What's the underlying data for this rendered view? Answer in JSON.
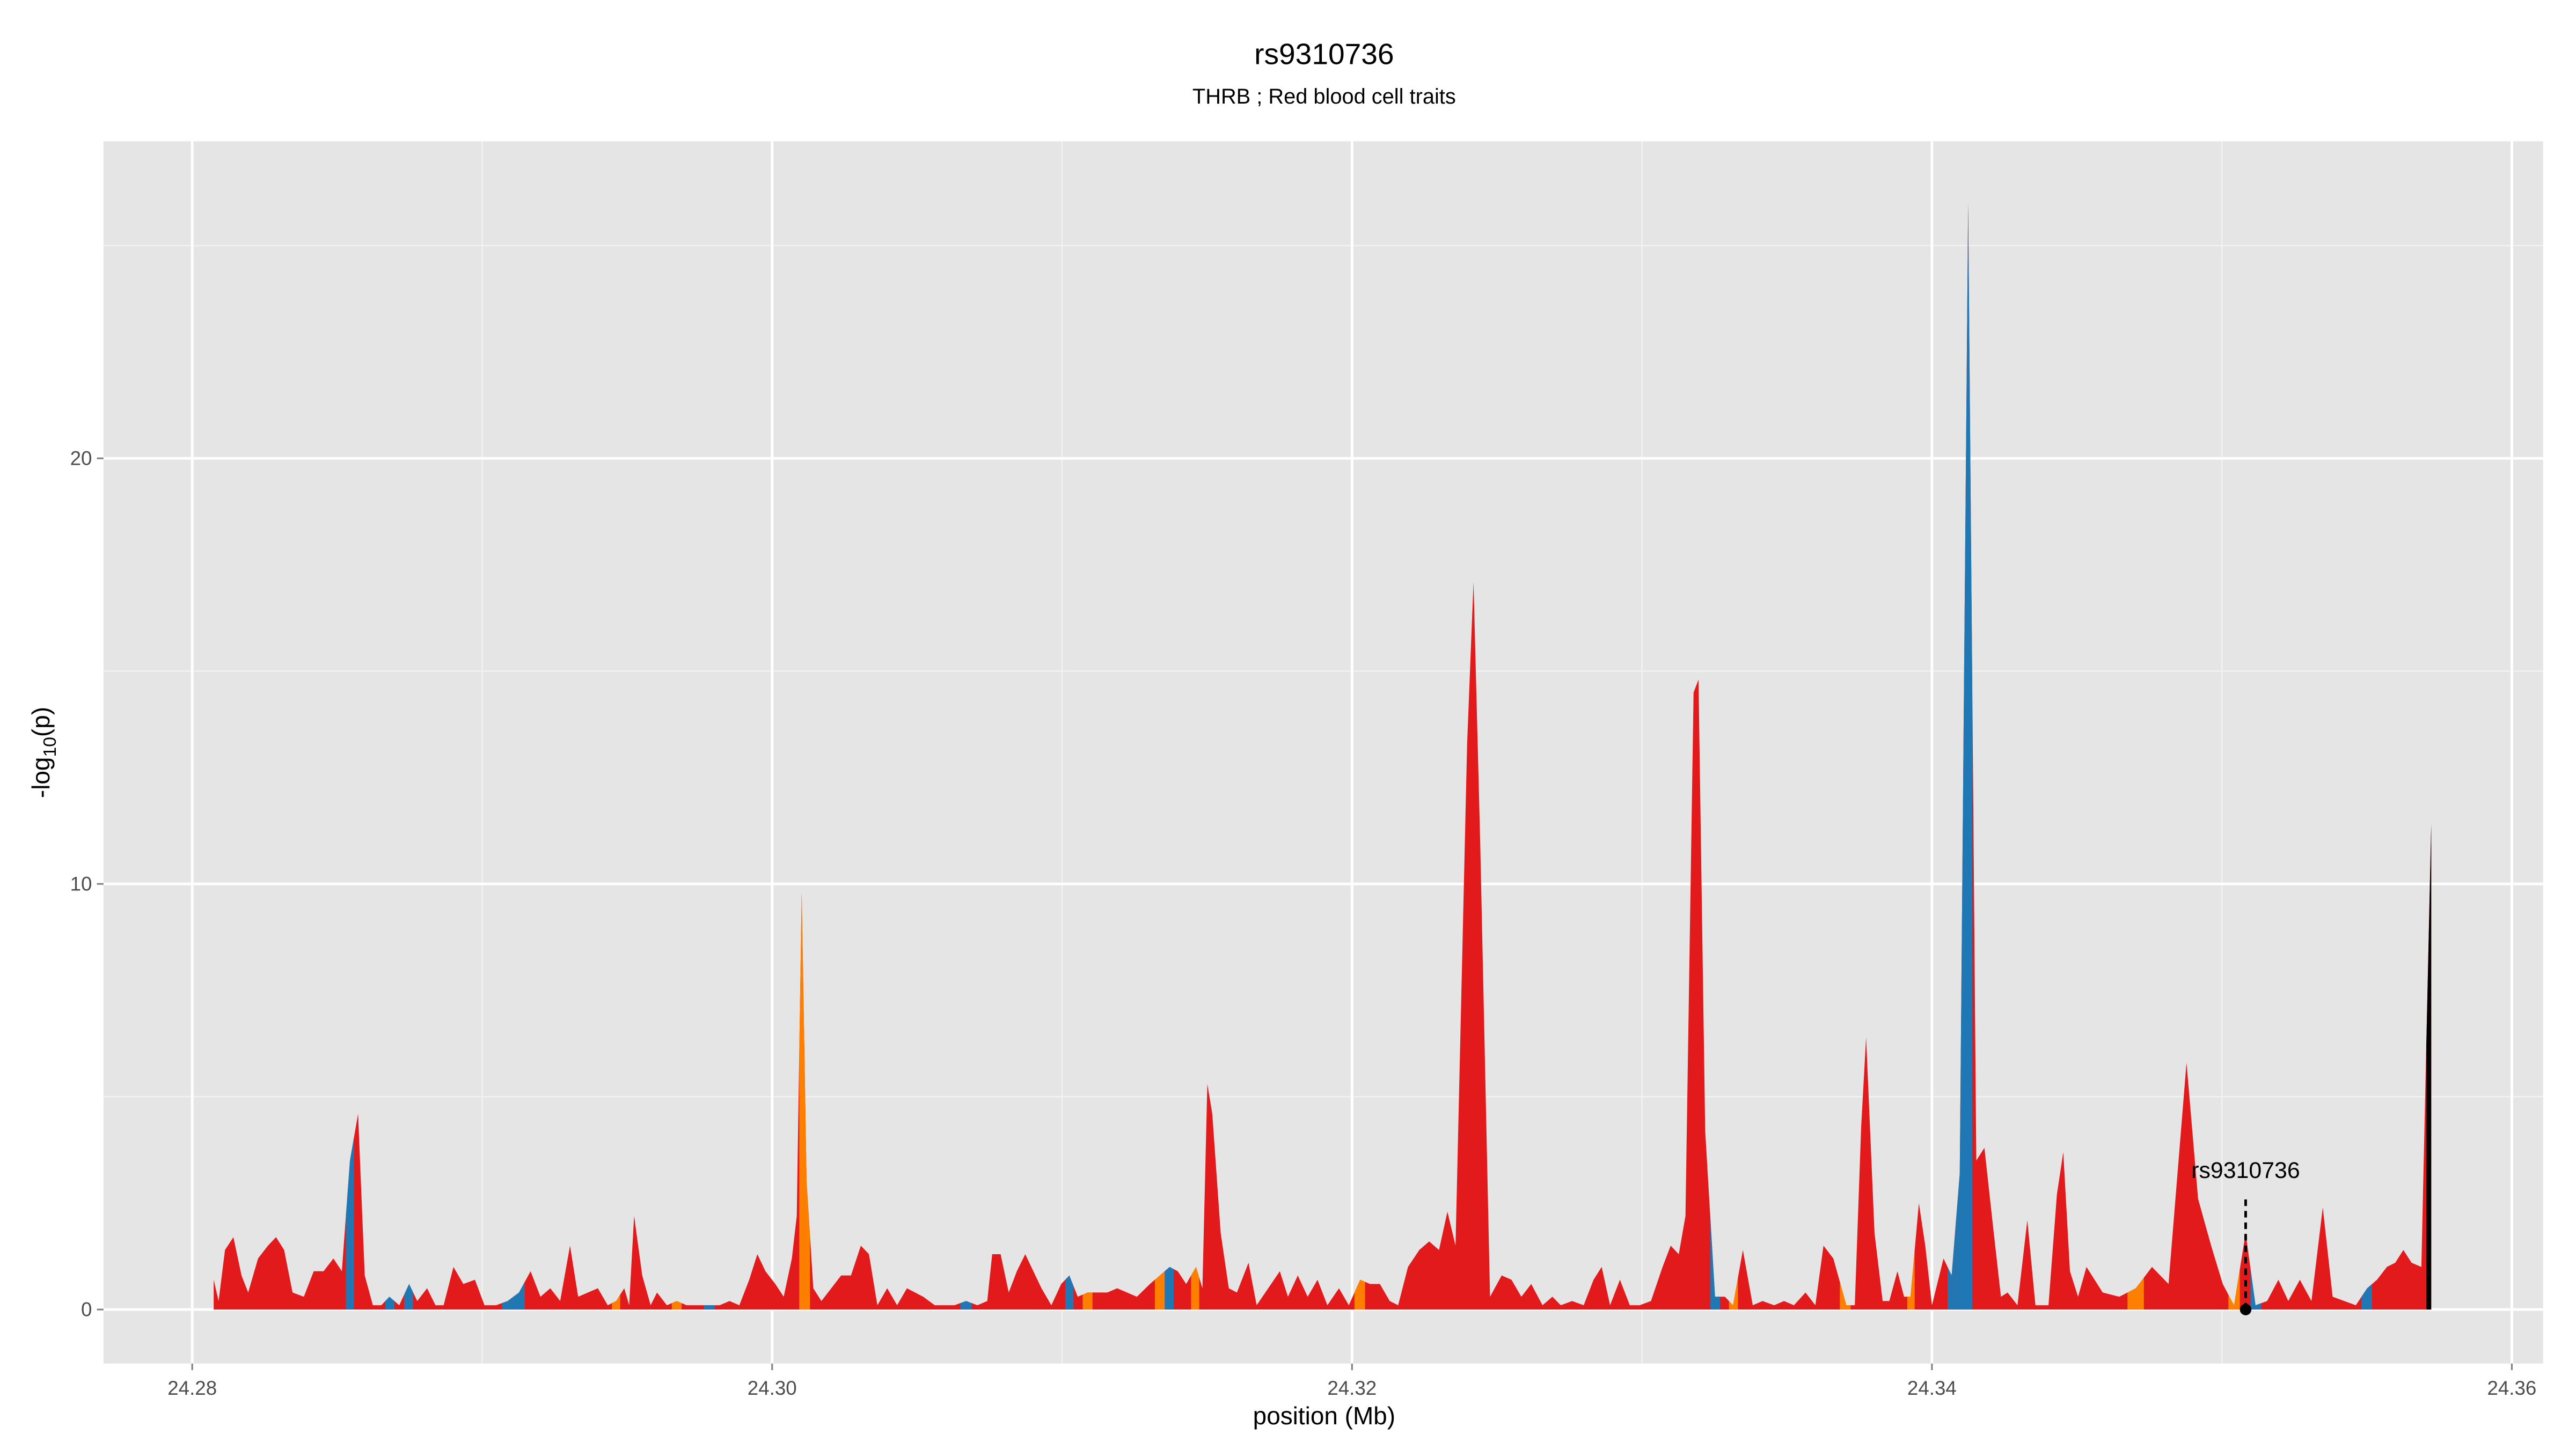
{
  "chart_data": {
    "type": "area",
    "title": "rs9310736",
    "subtitle": "THRB ; Red blood cell traits",
    "x_label": "position (Mb)",
    "y_label": {
      "main": "-log",
      "sub": "10",
      "suffix": "(p)"
    },
    "xlim": [
      24.27694,
      24.36108
    ],
    "ylim": [
      -1.27,
      27.45
    ],
    "xticks": [
      24.28,
      {
        "value": 24.3,
        "label": "24.30"
      },
      24.32,
      24.34,
      24.36
    ],
    "yticks": [
      0,
      10,
      20
    ],
    "x_minor_grid": [
      24.29,
      24.31,
      24.33,
      24.35
    ],
    "y_minor_grid": [
      5,
      15,
      25
    ],
    "grid": true,
    "background": "#e5e5e5",
    "annotation": {
      "label": "rs9310736",
      "x": 24.35082,
      "y": 0
    },
    "x": [
      24.28074,
      24.28091,
      24.28113,
      24.28142,
      24.2817,
      24.28193,
      24.28227,
      24.28261,
      24.28289,
      24.28317,
      24.28346,
      24.28385,
      24.28419,
      24.28453,
      24.28487,
      24.28516,
      24.28544,
      24.28572,
      24.28595,
      24.28623,
      24.28652,
      24.2868,
      24.28714,
      24.28748,
      24.28776,
      24.2881,
      24.28839,
      24.28867,
      24.28901,
      24.28935,
      24.28975,
      24.29008,
      24.29048,
      24.29088,
      24.29127,
      24.29167,
      24.29201,
      24.29235,
      24.29269,
      24.29303,
      24.29331,
      24.29365,
      24.29399,
      24.29433,
      24.29462,
      24.2949,
      24.29507,
      24.29524,
      24.29552,
      24.29581,
      24.29603,
      24.29637,
      24.29671,
      24.29705,
      24.29745,
      24.29785,
      24.29819,
      24.29853,
      24.29887,
      24.29921,
      24.29949,
      24.29977,
      24.30011,
      24.3004,
      24.30068,
      24.30085,
      24.30102,
      24.30119,
      24.30142,
      24.3017,
      24.30204,
      24.30238,
      24.30272,
      24.30306,
      24.30334,
      24.30363,
      24.30397,
      24.30431,
      24.30465,
      24.30493,
      24.30521,
      24.30561,
      24.30595,
      24.30629,
      24.30669,
      24.30708,
      24.30742,
      24.30759,
      24.30788,
      24.30816,
      24.30844,
      24.30873,
      24.30901,
      24.30929,
      24.30963,
      24.30997,
      24.31025,
      24.31054,
      24.31088,
      24.31122,
      24.31156,
      24.3119,
      24.31224,
      24.31258,
      24.31303,
      24.31337,
      24.31371,
      24.31399,
      24.31428,
      24.31462,
      24.31484,
      24.31501,
      24.31518,
      24.31547,
      24.31575,
      24.31603,
      24.31643,
      24.31671,
      24.31711,
      24.31751,
      24.31779,
      24.31813,
      24.31847,
      24.31881,
      24.31915,
      24.31955,
      24.31989,
      24.32028,
      24.32062,
      24.32096,
      24.3213,
      24.32159,
      24.32193,
      24.32232,
      24.32266,
      24.323,
      24.32329,
      24.32357,
      24.32397,
      24.32419,
      24.32442,
      24.32476,
      24.32516,
      24.3255,
      24.32584,
      24.32618,
      24.32657,
      24.32691,
      24.3272,
      24.32759,
      24.32799,
      24.32833,
      24.32861,
      24.3289,
      24.32924,
      24.32958,
      24.32992,
      24.33031,
      24.33071,
      24.33099,
      24.33127,
      24.3315,
      24.33178,
      24.33195,
      24.33218,
      24.33252,
      24.33286,
      24.33314,
      24.33348,
      24.33382,
      24.33416,
      24.33456,
      24.3349,
      24.33524,
      24.33564,
      24.33598,
      24.33626,
      24.3366,
      24.33705,
      24.33734,
      24.33756,
      24.33773,
      24.33802,
      24.3383,
      24.33853,
      24.33881,
      24.33904,
      24.33926,
      24.33955,
      24.33977,
      24.34,
      24.3404,
      24.34068,
      24.34096,
      24.34125,
      24.34153,
      24.34181,
      24.3421,
      24.34238,
      24.34261,
      24.34295,
      24.34329,
      24.34357,
      24.34402,
      24.34431,
      24.34453,
      24.34476,
      24.34504,
      24.34533,
      24.34589,
      24.34646,
      24.34703,
      24.34759,
      24.34816,
      24.34878,
      24.34918,
      24.34963,
      24.35003,
      24.35042,
      24.35082,
      24.35116,
      24.35156,
      24.35195,
      24.35229,
      24.35269,
      24.35309,
      24.35348,
      24.35382,
      24.35422,
      24.35462,
      24.35501,
      24.35535,
      24.35569,
      24.35598,
      24.35626,
      24.35654,
      24.35688,
      24.35722
    ],
    "values": [
      0.7,
      0.2,
      1.4,
      1.7,
      0.8,
      0.4,
      1.2,
      1.5,
      1.7,
      1.4,
      0.4,
      0.3,
      0.9,
      0.9,
      1.2,
      0.9,
      3.5,
      4.6,
      0.8,
      0.1,
      0.1,
      0.3,
      0.1,
      0.6,
      0.2,
      0.5,
      0.1,
      0.1,
      1.0,
      0.6,
      0.7,
      0.1,
      0.1,
      0.2,
      0.4,
      0.9,
      0.3,
      0.5,
      0.2,
      1.5,
      0.3,
      0.4,
      0.5,
      0.1,
      0.2,
      0.5,
      0.1,
      2.2,
      0.8,
      0.1,
      0.4,
      0.1,
      0.2,
      0.1,
      0.1,
      0.1,
      0.1,
      0.2,
      0.1,
      0.7,
      1.3,
      0.9,
      0.6,
      0.3,
      1.2,
      2.2,
      9.8,
      3.0,
      0.5,
      0.2,
      0.5,
      0.8,
      0.8,
      1.5,
      1.3,
      0.1,
      0.5,
      0.1,
      0.5,
      0.4,
      0.3,
      0.1,
      0.1,
      0.1,
      0.2,
      0.1,
      0.2,
      1.3,
      1.3,
      0.4,
      0.9,
      1.3,
      0.9,
      0.5,
      0.1,
      0.6,
      0.8,
      0.3,
      0.4,
      0.4,
      0.4,
      0.5,
      0.4,
      0.3,
      0.6,
      0.8,
      1.0,
      0.9,
      0.6,
      1.0,
      0.5,
      5.3,
      4.6,
      1.8,
      0.5,
      0.4,
      1.1,
      0.1,
      0.5,
      0.9,
      0.3,
      0.8,
      0.3,
      0.7,
      0.1,
      0.5,
      0.1,
      0.7,
      0.6,
      0.6,
      0.2,
      0.1,
      1.0,
      1.4,
      1.6,
      1.4,
      2.3,
      1.5,
      13.3,
      17.1,
      11.0,
      0.3,
      0.8,
      0.7,
      0.3,
      0.6,
      0.1,
      0.3,
      0.1,
      0.2,
      0.1,
      0.7,
      1.0,
      0.1,
      0.7,
      0.1,
      0.1,
      0.2,
      1.0,
      1.5,
      1.3,
      2.2,
      14.5,
      14.8,
      4.2,
      0.3,
      0.3,
      0.1,
      1.4,
      0.1,
      0.2,
      0.1,
      0.2,
      0.1,
      0.4,
      0.1,
      1.5,
      1.2,
      0.1,
      0.1,
      4.3,
      6.4,
      1.8,
      0.2,
      0.2,
      0.9,
      0.3,
      0.3,
      2.5,
      1.5,
      0.1,
      1.2,
      0.8,
      3.2,
      26.0,
      3.5,
      3.8,
      2.0,
      0.3,
      0.4,
      0.1,
      2.1,
      0.1,
      0.1,
      2.7,
      3.7,
      0.9,
      0.3,
      1.0,
      0.4,
      0.3,
      0.5,
      1.0,
      0.6,
      5.8,
      2.6,
      1.5,
      0.6,
      0.1,
      1.8,
      0.1,
      0.2,
      0.7,
      0.2,
      0.7,
      0.2,
      2.4,
      0.3,
      0.2,
      0.1,
      0.5,
      0.7,
      1.0,
      1.1,
      1.4,
      1.1,
      1.0,
      11.4
    ],
    "colors": [
      "#e31a1c",
      "#e31a1c",
      "#e31a1c",
      "#e31a1c",
      "#e31a1c",
      "#e31a1c",
      "#e31a1c",
      "#e31a1c",
      "#e31a1c",
      "#e31a1c",
      "#e31a1c",
      "#e31a1c",
      "#e31a1c",
      "#e31a1c",
      "#e31a1c",
      "#e31a1c",
      "#1f78b4",
      "#e31a1c",
      "#e31a1c",
      "#e31a1c",
      "#e31a1c",
      "#1f78b4",
      "#e31a1c",
      "#1f78b4",
      "#e31a1c",
      "#e31a1c",
      "#e31a1c",
      "#e31a1c",
      "#e31a1c",
      "#e31a1c",
      "#e31a1c",
      "#e31a1c",
      "#e31a1c",
      "#1f78b4",
      "#1f78b4",
      "#e31a1c",
      "#e31a1c",
      "#e31a1c",
      "#e31a1c",
      "#e31a1c",
      "#e31a1c",
      "#e31a1c",
      "#e31a1c",
      "#e31a1c",
      "#ff7f00",
      "#e31a1c",
      "#e31a1c",
      "#e31a1c",
      "#e31a1c",
      "#e31a1c",
      "#e31a1c",
      "#e31a1c",
      "#ff7f00",
      "#e31a1c",
      "#e31a1c",
      "#1f78b4",
      "#e31a1c",
      "#e31a1c",
      "#e31a1c",
      "#e31a1c",
      "#e31a1c",
      "#e31a1c",
      "#e31a1c",
      "#e31a1c",
      "#e31a1c",
      "#e31a1c",
      "#ff7f00",
      "#ff7f00",
      "#e31a1c",
      "#e31a1c",
      "#e31a1c",
      "#e31a1c",
      "#e31a1c",
      "#e31a1c",
      "#e31a1c",
      "#e31a1c",
      "#e31a1c",
      "#e31a1c",
      "#e31a1c",
      "#e31a1c",
      "#e31a1c",
      "#e31a1c",
      "#e31a1c",
      "#e31a1c",
      "#1f78b4",
      "#e31a1c",
      "#e31a1c",
      "#e31a1c",
      "#e31a1c",
      "#e31a1c",
      "#e31a1c",
      "#e31a1c",
      "#e31a1c",
      "#e31a1c",
      "#e31a1c",
      "#e31a1c",
      "#1f78b4",
      "#e31a1c",
      "#ff7f00",
      "#e31a1c",
      "#e31a1c",
      "#e31a1c",
      "#e31a1c",
      "#e31a1c",
      "#e31a1c",
      "#ff7f00",
      "#1f78b4",
      "#e31a1c",
      "#e31a1c",
      "#ff7f00",
      "#e31a1c",
      "#e31a1c",
      "#e31a1c",
      "#e31a1c",
      "#e31a1c",
      "#e31a1c",
      "#e31a1c",
      "#e31a1c",
      "#e31a1c",
      "#e31a1c",
      "#e31a1c",
      "#e31a1c",
      "#e31a1c",
      "#e31a1c",
      "#e31a1c",
      "#e31a1c",
      "#e31a1c",
      "#ff7f00",
      "#e31a1c",
      "#e31a1c",
      "#e31a1c",
      "#e31a1c",
      "#e31a1c",
      "#e31a1c",
      "#e31a1c",
      "#e31a1c",
      "#e31a1c",
      "#e31a1c",
      "#e31a1c",
      "#e31a1c",
      "#e31a1c",
      "#e31a1c",
      "#e31a1c",
      "#e31a1c",
      "#e31a1c",
      "#e31a1c",
      "#e31a1c",
      "#e31a1c",
      "#e31a1c",
      "#e31a1c",
      "#e31a1c",
      "#e31a1c",
      "#e31a1c",
      "#e31a1c",
      "#e31a1c",
      "#e31a1c",
      "#e31a1c",
      "#e31a1c",
      "#e31a1c",
      "#e31a1c",
      "#e31a1c",
      "#e31a1c",
      "#e31a1c",
      "#e31a1c",
      "#e31a1c",
      "#1f78b4",
      "#e31a1c",
      "#ff7f00",
      "#e31a1c",
      "#e31a1c",
      "#e31a1c",
      "#e31a1c",
      "#e31a1c",
      "#e31a1c",
      "#e31a1c",
      "#e31a1c",
      "#e31a1c",
      "#e31a1c",
      "#ff7f00",
      "#e31a1c",
      "#e31a1c",
      "#e31a1c",
      "#e31a1c",
      "#e31a1c",
      "#e31a1c",
      "#e31a1c",
      "#e31a1c",
      "#ff7f00",
      "#e31a1c",
      "#e31a1c",
      "#e31a1c",
      "#e31a1c",
      "#1f78b4",
      "#1f78b4",
      "#1f78b4",
      "#e31a1c",
      "#e31a1c",
      "#e31a1c",
      "#e31a1c",
      "#e31a1c",
      "#e31a1c",
      "#e31a1c",
      "#e31a1c",
      "#e31a1c",
      "#e31a1c",
      "#e31a1c",
      "#e31a1c",
      "#e31a1c",
      "#e31a1c",
      "#e31a1c",
      "#e31a1c",
      "#ff7f00",
      "#e31a1c",
      "#e31a1c",
      "#e31a1c",
      "#e31a1c",
      "#e31a1c",
      "#e31a1c",
      "#ff7f00",
      "#e31a1c",
      "#1f78b4",
      "#e31a1c",
      "#e31a1c",
      "#e31a1c",
      "#e31a1c",
      "#e31a1c",
      "#e31a1c",
      "#e31a1c",
      "#e31a1c",
      "#e31a1c",
      "#1f78b4",
      "#e31a1c",
      "#e31a1c",
      "#e31a1c",
      "#e31a1c",
      "#e31a1c",
      "#e31a1c"
    ],
    "color": "#e31a1c"
  }
}
